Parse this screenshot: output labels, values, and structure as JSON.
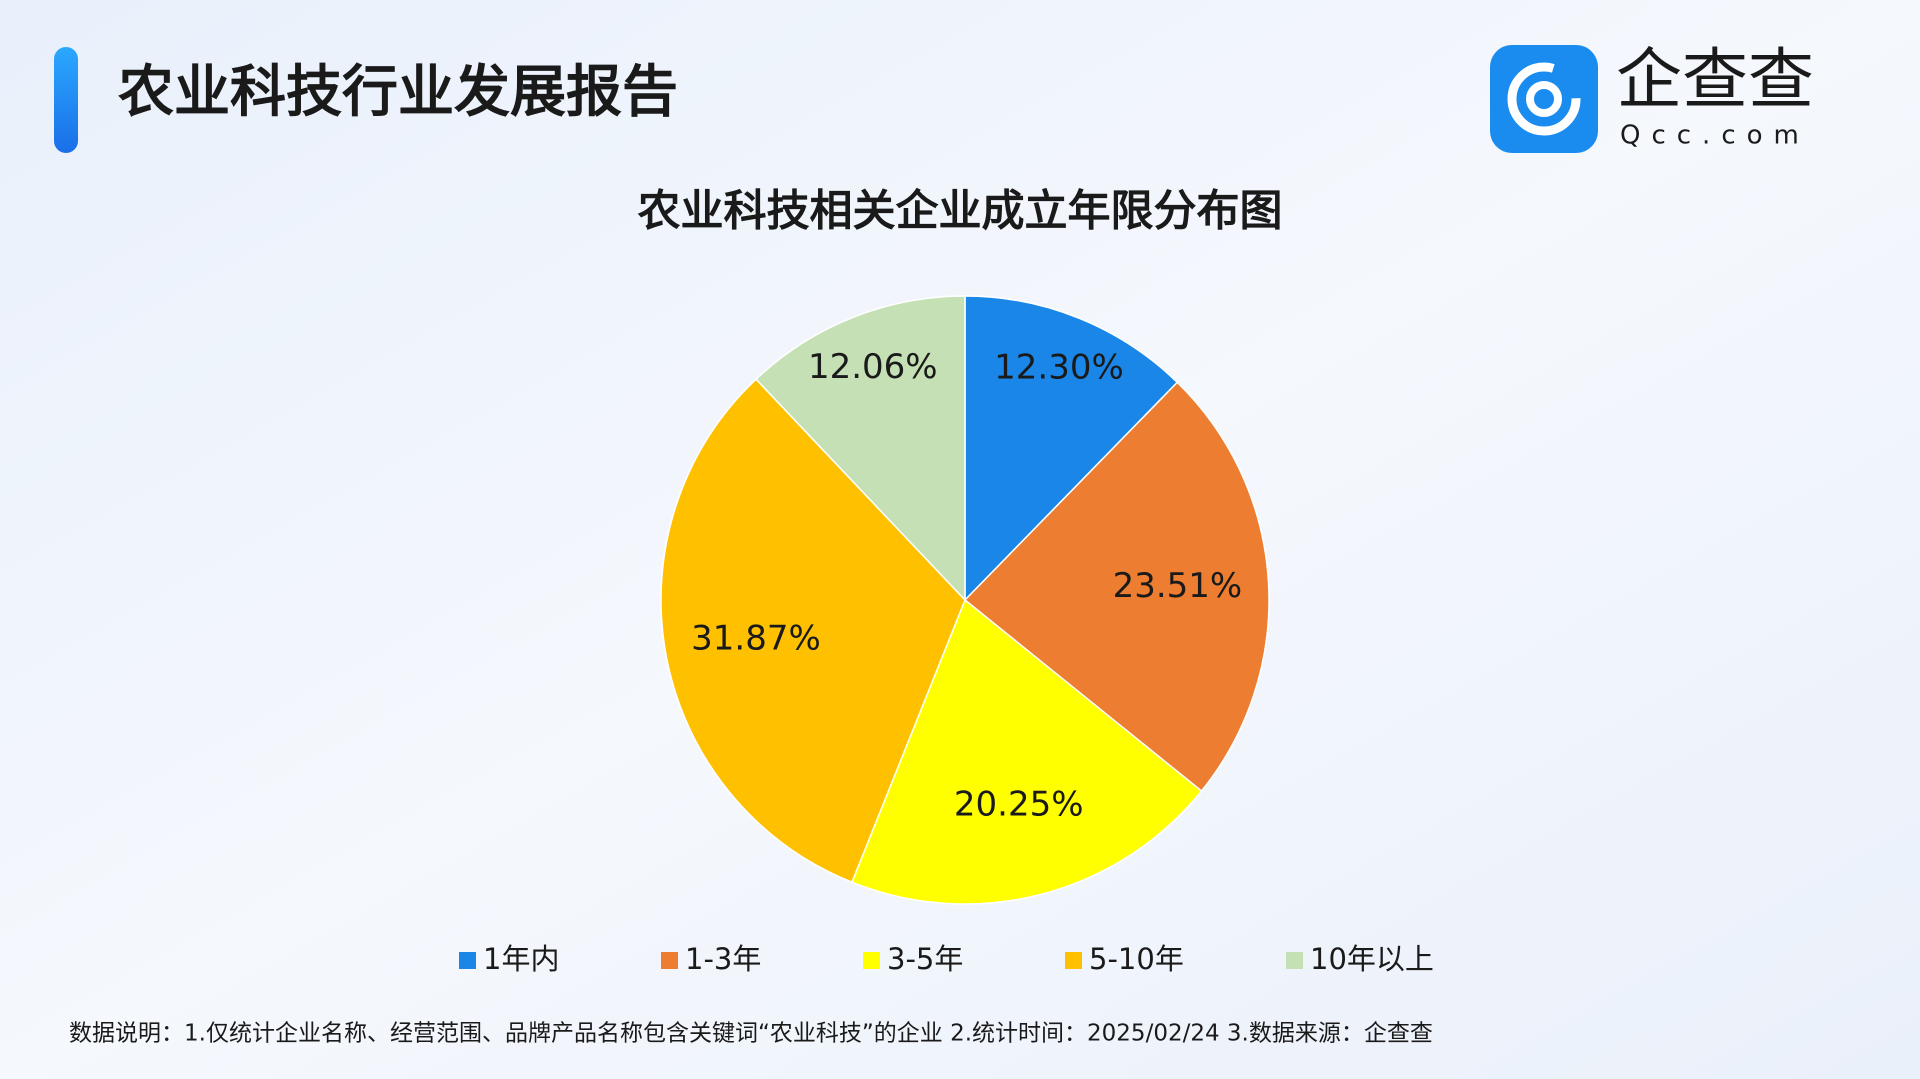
{
  "header": {
    "title": "农业科技行业发展报告",
    "logo_text": "企查查",
    "logo_sub": "Qcc.com"
  },
  "chart_data": {
    "type": "pie",
    "title": "农业科技相关企业成立年限分布图",
    "categories": [
      "1年内",
      "1-3年",
      "3-5年",
      "5-10年",
      "10年以上"
    ],
    "values": [
      12.3,
      23.51,
      20.25,
      31.87,
      12.06
    ],
    "value_labels": [
      "12.30%",
      "23.51%",
      "20.25%",
      "31.87%",
      "12.06%"
    ],
    "colors": [
      "#1a87e8",
      "#ed7d31",
      "#ffff00",
      "#ffc000",
      "#c5e0b4"
    ],
    "legend": "bottom"
  },
  "footnote": "数据说明：1.仅统计企业名称、经营范围、品牌产品名称包含关键词“农业科技”的企业   2.统计时间：2025/02/24    3.数据来源：企查查"
}
